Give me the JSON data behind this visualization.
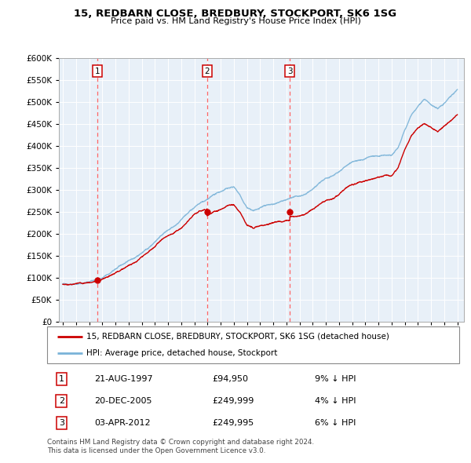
{
  "title": "15, REDBARN CLOSE, BREDBURY, STOCKPORT, SK6 1SG",
  "subtitle": "Price paid vs. HM Land Registry's House Price Index (HPI)",
  "legend_line1": "15, REDBARN CLOSE, BREDBURY, STOCKPORT, SK6 1SG (detached house)",
  "legend_line2": "HPI: Average price, detached house, Stockport",
  "sale_labels": [
    "1",
    "2",
    "3"
  ],
  "sale_decimal": [
    1997.638,
    2005.962,
    2012.257
  ],
  "sale_prices": [
    94950,
    249999,
    249995
  ],
  "table_rows": [
    [
      "1",
      "21-AUG-1997",
      "£94,950",
      "9% ↓ HPI"
    ],
    [
      "2",
      "20-DEC-2005",
      "£249,999",
      "4% ↓ HPI"
    ],
    [
      "3",
      "03-APR-2012",
      "£249,995",
      "6% ↓ HPI"
    ]
  ],
  "footer": "Contains HM Land Registry data © Crown copyright and database right 2024.\nThis data is licensed under the Open Government Licence v3.0.",
  "hpi_color": "#7ab3d8",
  "price_color": "#cc0000",
  "dashed_color": "#ff6666",
  "bg_color": "#e8f0f8",
  "ylim": [
    0,
    600000
  ],
  "yticks": [
    0,
    50000,
    100000,
    150000,
    200000,
    250000,
    300000,
    350000,
    400000,
    450000,
    500000,
    550000,
    600000
  ],
  "xlim_start": 1994.7,
  "xlim_end": 2025.5
}
